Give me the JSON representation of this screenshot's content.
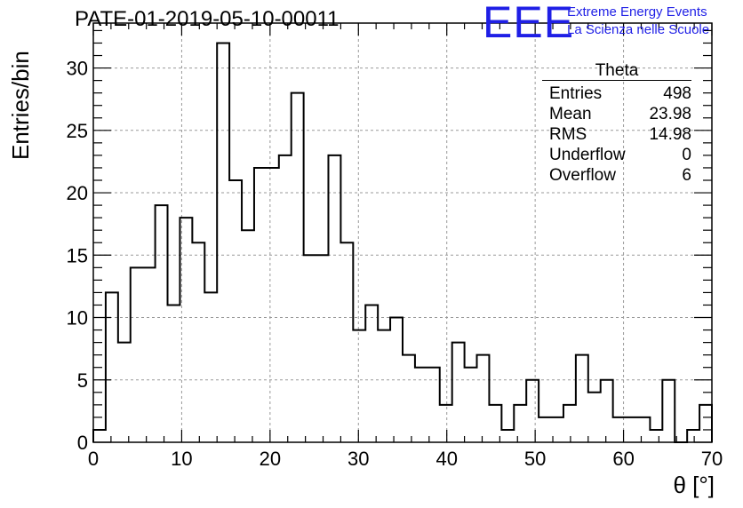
{
  "title": "PATE-01-2019-05-10-00011",
  "logo": {
    "letters": "EEE",
    "line1": "Extreme Energy Events",
    "line2": "La Scienza nelle Scuole",
    "color": "#1f1fe6"
  },
  "stats_box": {
    "title": "Theta",
    "rows": [
      {
        "label": "Entries",
        "value": "498"
      },
      {
        "label": "Mean",
        "value": "23.98"
      },
      {
        "label": "RMS",
        "value": "14.98"
      },
      {
        "label": "Underflow",
        "value": "0"
      },
      {
        "label": "Overflow",
        "value": "6"
      }
    ]
  },
  "chart_data": {
    "type": "bar",
    "title": "PATE-01-2019-05-10-00011",
    "xlabel": "θ [°]",
    "ylabel": "Entries/bin",
    "xlim": [
      0,
      70
    ],
    "ylim": [
      0,
      33.6
    ],
    "x_ticks": [
      0,
      10,
      20,
      30,
      40,
      50,
      60,
      70
    ],
    "y_ticks": [
      0,
      5,
      10,
      15,
      20,
      25,
      30
    ],
    "grid": true,
    "bin_width": 1.4,
    "values": [
      1,
      12,
      8,
      14,
      14,
      19,
      11,
      18,
      16,
      12,
      32,
      21,
      17,
      22,
      22,
      23,
      28,
      15,
      15,
      23,
      16,
      9,
      11,
      9,
      10,
      7,
      6,
      6,
      3,
      8,
      6,
      7,
      3,
      1,
      3,
      5,
      2,
      2,
      3,
      7,
      4,
      5,
      2,
      2,
      2,
      1,
      5,
      0,
      1,
      3
    ]
  }
}
